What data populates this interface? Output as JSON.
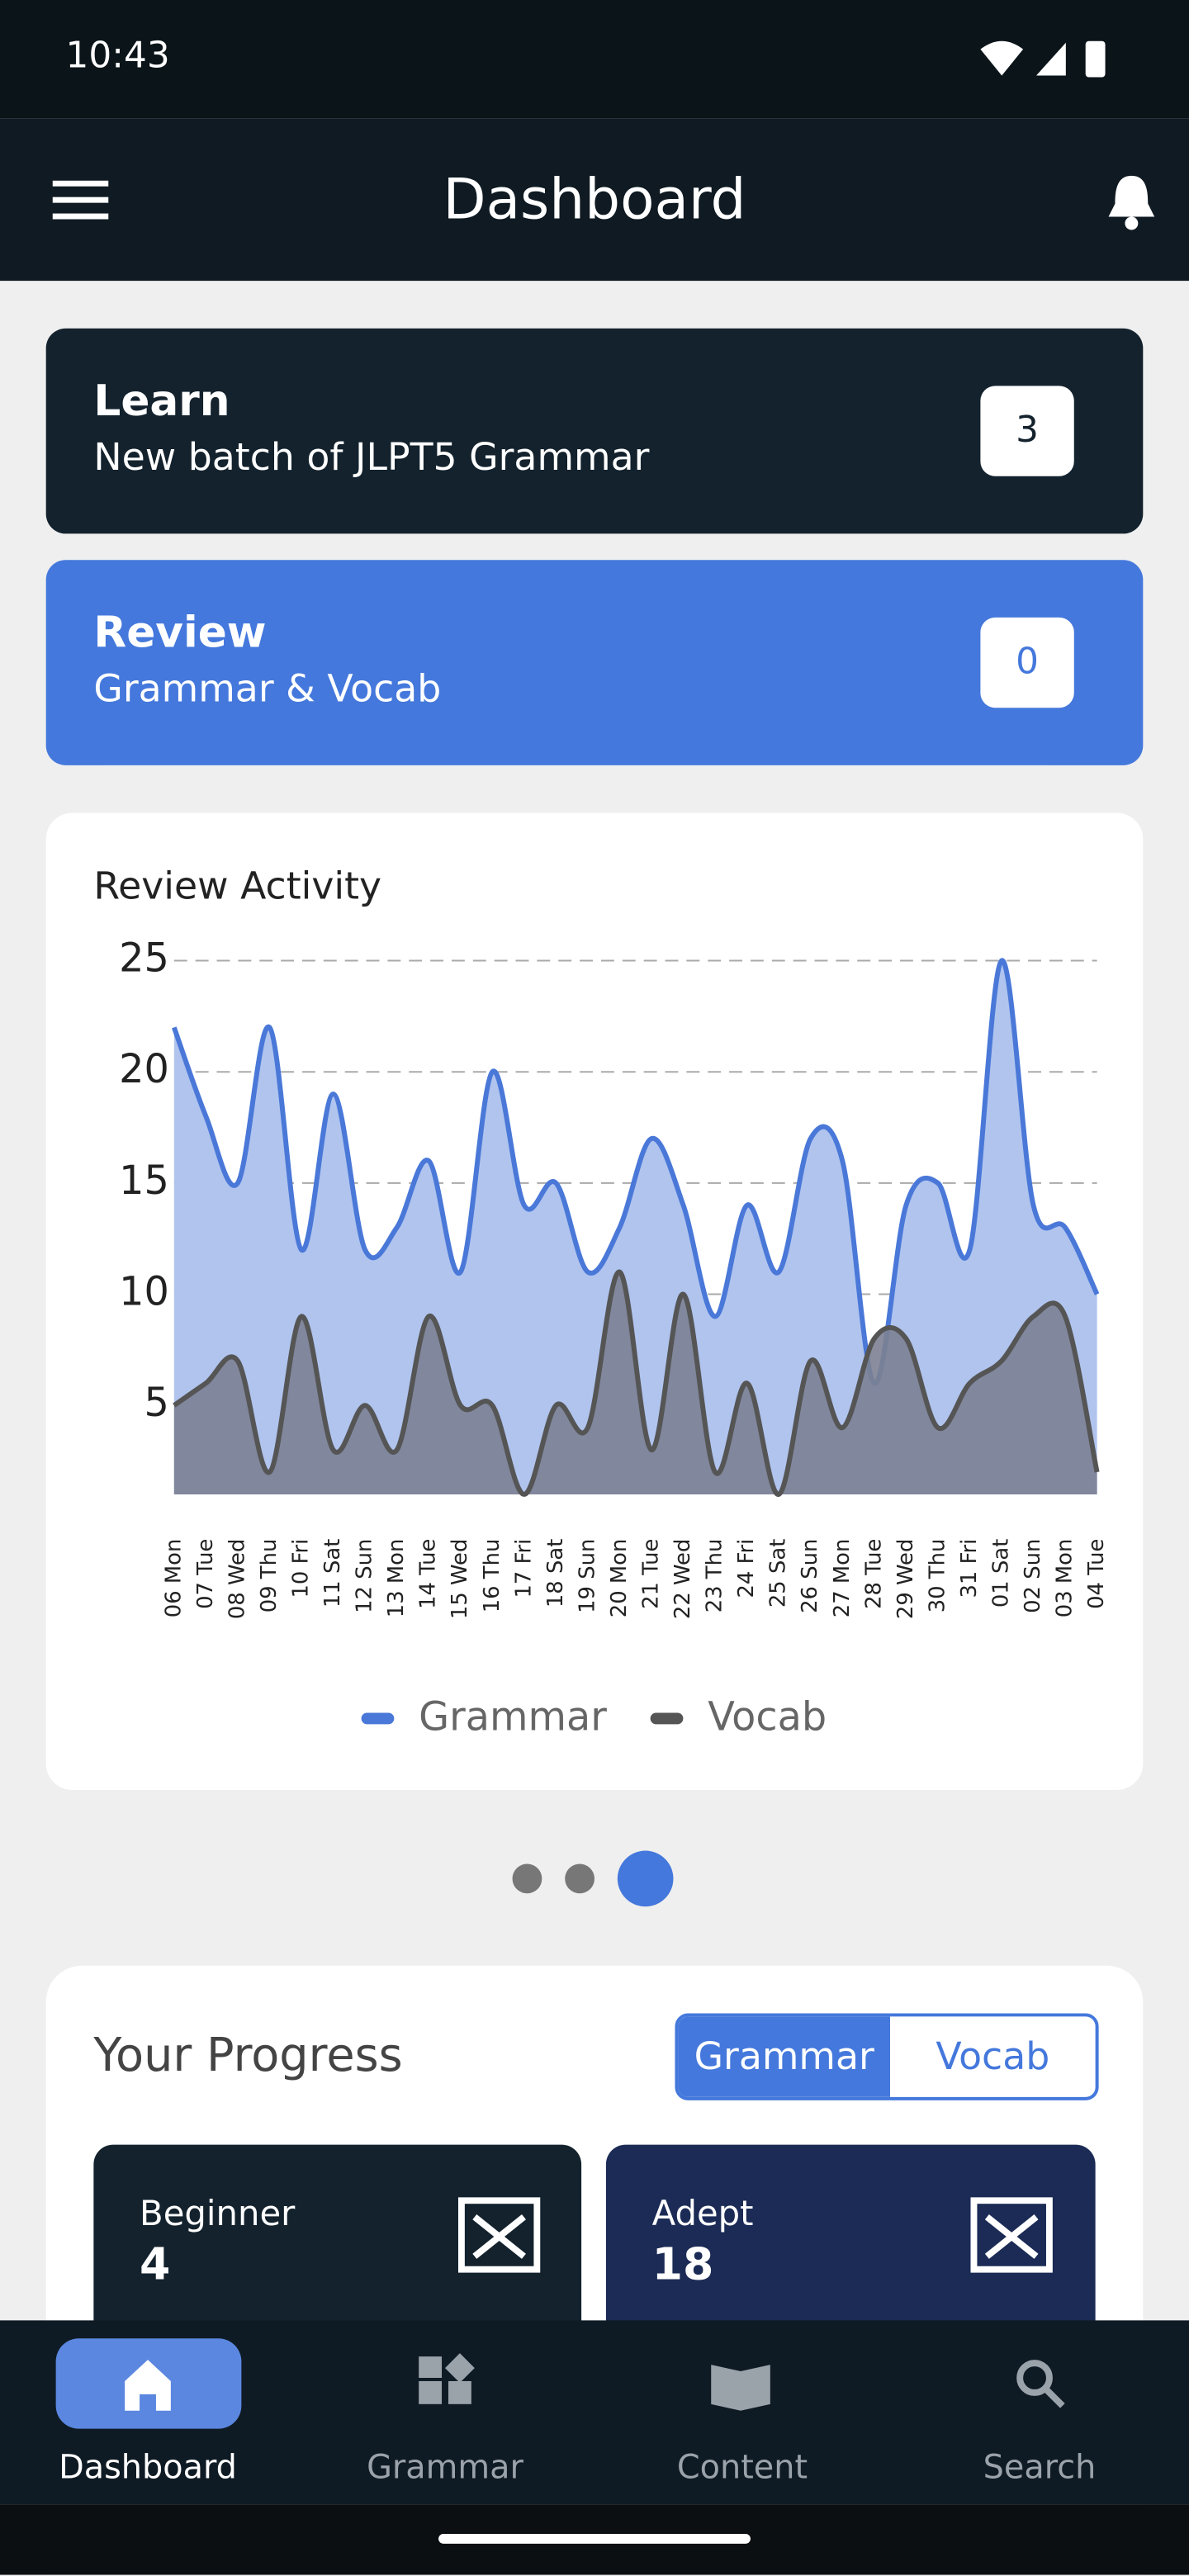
{
  "status_bar": {
    "time": "10:43"
  },
  "header": {
    "title": "Dashboard"
  },
  "cards": [
    {
      "title": "Learn",
      "subtitle": "New batch of JLPT5 Grammar",
      "count": 3
    },
    {
      "title": "Review",
      "subtitle": "Grammar & Vocab",
      "count": 0
    }
  ],
  "chart_data": {
    "type": "area",
    "title": "Review Activity",
    "categories": [
      "06 Mon",
      "07 Tue",
      "08 Wed",
      "09 Thu",
      "10 Fri",
      "11 Sat",
      "12 Sun",
      "13 Mon",
      "14 Tue",
      "15 Wed",
      "16 Thu",
      "17 Fri",
      "18 Sat",
      "19 Sun",
      "20 Mon",
      "21 Tue",
      "22 Wed",
      "23 Thu",
      "24 Fri",
      "25 Sat",
      "26 Sun",
      "27 Mon",
      "28 Tue",
      "29 Wed",
      "30 Thu",
      "31 Fri",
      "01 Sat",
      "02 Sun",
      "03 Mon",
      "04 Tue"
    ],
    "series": [
      {
        "name": "Grammar",
        "color": "#4a78d8",
        "values": [
          22,
          18,
          15,
          22,
          12,
          19,
          12,
          13,
          16,
          11,
          20,
          14,
          15,
          11,
          13,
          17,
          14,
          9,
          14,
          11,
          17,
          16,
          6,
          14,
          15,
          12,
          25,
          14,
          13,
          10
        ]
      },
      {
        "name": "Vocab",
        "color": "#555555",
        "values": [
          5,
          6,
          7,
          2,
          9,
          3,
          5,
          3,
          9,
          5,
          5,
          1,
          5,
          4,
          11,
          3,
          10,
          2,
          6,
          1,
          7,
          4,
          8,
          8,
          4,
          6,
          7,
          9,
          9,
          2
        ]
      }
    ],
    "ylim": [
      1,
      25
    ],
    "yticks": [
      5,
      10,
      15,
      20,
      25
    ],
    "grid": true,
    "legend": "bottom"
  },
  "pager": {
    "pages": 3,
    "active": 2
  },
  "progress": {
    "title": "Your Progress",
    "toggle": [
      "Grammar",
      "Vocab"
    ],
    "levels": [
      {
        "name": "Beginner",
        "count": 4
      },
      {
        "name": "Adept",
        "count": 18
      }
    ]
  },
  "nav": [
    "Dashboard",
    "Grammar",
    "Content",
    "Search"
  ]
}
